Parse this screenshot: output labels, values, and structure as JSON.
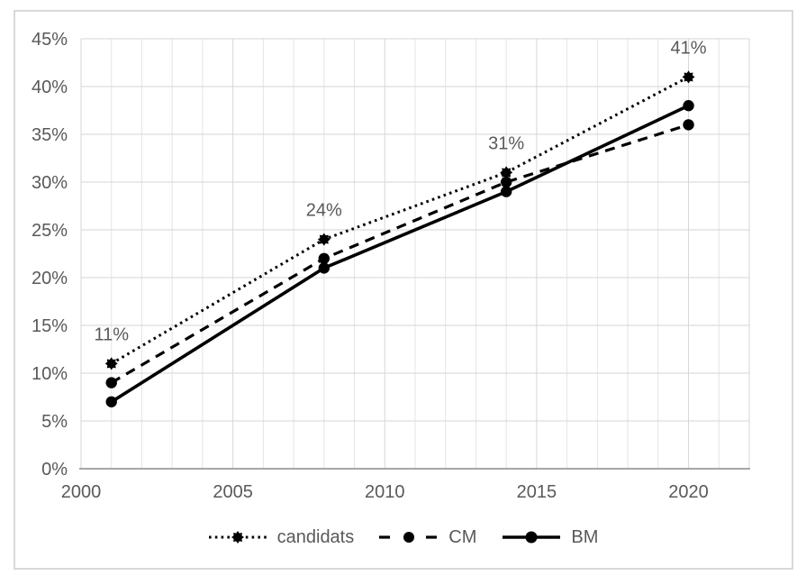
{
  "chart_data": {
    "type": "line",
    "x": [
      2001,
      2008,
      2014,
      2020
    ],
    "series": [
      {
        "name": "candidats",
        "line_style": "dotted",
        "marker": "star",
        "values": [
          11,
          24,
          31,
          41
        ],
        "data_labels": [
          "11%",
          "24%",
          "31%",
          "41%"
        ]
      },
      {
        "name": "CM",
        "line_style": "dashed",
        "marker": "circle",
        "values": [
          9,
          22,
          30,
          36
        ],
        "data_labels": []
      },
      {
        "name": "BM",
        "line_style": "solid",
        "marker": "circle",
        "values": [
          7,
          21,
          29,
          38
        ],
        "data_labels": []
      }
    ],
    "title": "",
    "xlabel": "",
    "ylabel": "",
    "x_axis": {
      "min": 2000,
      "max": 2022,
      "major_step": 5,
      "minor_gridline_step": 1,
      "tick_values": [
        2000,
        2005,
        2010,
        2015,
        2020
      ],
      "tick_labels": [
        "2000",
        "2005",
        "2010",
        "2015",
        "2020"
      ]
    },
    "y_axis": {
      "min": 0,
      "max": 45,
      "major_step": 5,
      "tick_labels": [
        "0%",
        "5%",
        "10%",
        "15%",
        "20%",
        "25%",
        "30%",
        "35%",
        "40%",
        "45%"
      ],
      "format": "percent"
    },
    "grid": true,
    "legend_position": "bottom",
    "colors": {
      "series_line": "#000000",
      "marker_fill": "#000000",
      "text": "#595959",
      "major_gridline": "#d6d6d6",
      "minor_gridline": "#e4e4e4",
      "axis_line": "#a6a6a6",
      "frame_border": "#d9d9d9",
      "background": "#ffffff"
    }
  },
  "legend": {
    "items": [
      {
        "label": "candidats"
      },
      {
        "label": "CM"
      },
      {
        "label": "BM"
      }
    ]
  }
}
